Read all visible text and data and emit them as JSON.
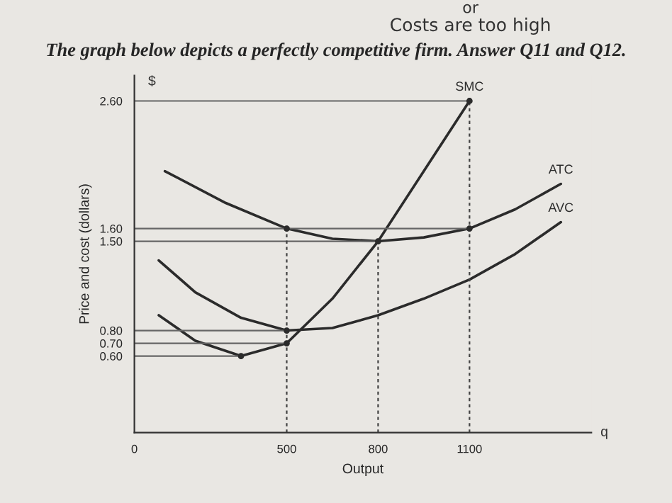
{
  "chart_data": {
    "type": "line",
    "title": "The graph below depicts a perfectly competitive firm. Answer Q11 and Q12.",
    "xlabel": "Output",
    "ylabel": "Price and cost (dollars)",
    "annotations": [
      "or",
      "Costs are too high",
      "$",
      "q"
    ],
    "xlim": [
      0,
      1500
    ],
    "ylim": [
      0,
      2.8
    ],
    "xticks": [
      0,
      500,
      800,
      1100
    ],
    "yticks": [
      {
        "value": 0.6,
        "label": "0.60"
      },
      {
        "value": 0.7,
        "label": "0.70"
      },
      {
        "value": 0.8,
        "label": "0.80"
      },
      {
        "value": 1.5,
        "label": "1.50"
      },
      {
        "value": 1.6,
        "label": "1.60"
      },
      {
        "value": 2.6,
        "label": "2.60"
      }
    ],
    "grid": false,
    "legend": false,
    "series": [
      {
        "name": "SMC",
        "color": "#2b2b2b",
        "x": [
          80,
          200,
          350,
          500,
          650,
          800,
          950,
          1100
        ],
        "values": [
          0.92,
          0.72,
          0.6,
          0.7,
          1.05,
          1.5,
          2.05,
          2.6
        ]
      },
      {
        "name": "ATC",
        "color": "#2b2b2b",
        "x": [
          100,
          300,
          500,
          650,
          800,
          950,
          1100,
          1250,
          1400
        ],
        "values": [
          2.05,
          1.8,
          1.6,
          1.52,
          1.5,
          1.53,
          1.6,
          1.75,
          1.95
        ]
      },
      {
        "name": "AVC",
        "color": "#2b2b2b",
        "x": [
          80,
          200,
          350,
          500,
          650,
          800,
          950,
          1100,
          1250,
          1400
        ],
        "values": [
          1.35,
          1.1,
          0.9,
          0.8,
          0.82,
          0.92,
          1.05,
          1.2,
          1.4,
          1.65
        ]
      },
      {
        "type": "scatter",
        "color": "#2b2b2b",
        "marker": "circle",
        "x": [
          350,
          500,
          500,
          500,
          800,
          1100,
          1100
        ],
        "values": [
          0.6,
          0.7,
          0.8,
          1.6,
          1.5,
          1.6,
          2.6
        ]
      },
      {
        "color": "#666666",
        "x": [
          0,
          1100
        ],
        "values": [
          2.6,
          2.6
        ]
      },
      {
        "color": "#666666",
        "x": [
          0,
          1100
        ],
        "values": [
          1.6,
          1.6
        ]
      },
      {
        "color": "#666666",
        "x": [
          0,
          800
        ],
        "values": [
          1.5,
          1.5
        ]
      },
      {
        "color": "#666666",
        "x": [
          0,
          500
        ],
        "values": [
          0.8,
          0.8
        ]
      },
      {
        "color": "#666666",
        "x": [
          0,
          500
        ],
        "values": [
          0.7,
          0.7
        ]
      },
      {
        "color": "#666666",
        "x": [
          0,
          350
        ],
        "values": [
          0.6,
          0.6
        ]
      },
      {
        "color": "#444444",
        "line_style": "dashed",
        "x": [
          500,
          500
        ],
        "values": [
          0,
          1.6
        ]
      },
      {
        "color": "#444444",
        "line_style": "dashed",
        "x": [
          800,
          800
        ],
        "values": [
          0,
          1.5
        ]
      },
      {
        "color": "#444444",
        "line_style": "dashed",
        "x": [
          1100,
          1100
        ],
        "values": [
          0,
          2.6
        ]
      }
    ]
  }
}
